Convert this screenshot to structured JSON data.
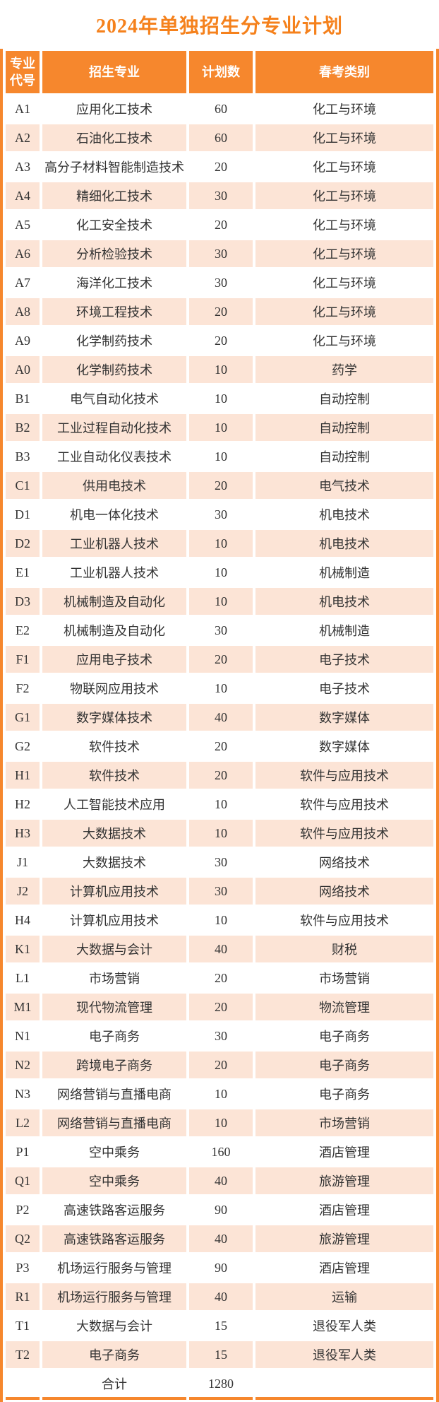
{
  "page": {
    "title": "2024年单独招生分专业计划"
  },
  "colors": {
    "accent_orange": "#F6872D",
    "title_orange": "#F5811C",
    "row_stripe_peach": "#FCE4D6",
    "header_text": "#FFFFFF",
    "body_text": "#333333"
  },
  "table": {
    "headers": [
      "专业代号",
      "招生专业",
      "计划数",
      "春考类别"
    ],
    "rows": [
      {
        "code": "A1",
        "major": "应用化工技术",
        "plan": "60",
        "category": "化工与环境"
      },
      {
        "code": "A2",
        "major": "石油化工技术",
        "plan": "60",
        "category": "化工与环境"
      },
      {
        "code": "A3",
        "major": "高分子材料智能制造技术",
        "plan": "20",
        "category": "化工与环境"
      },
      {
        "code": "A4",
        "major": "精细化工技术",
        "plan": "30",
        "category": "化工与环境"
      },
      {
        "code": "A5",
        "major": "化工安全技术",
        "plan": "20",
        "category": "化工与环境"
      },
      {
        "code": "A6",
        "major": "分析检验技术",
        "plan": "30",
        "category": "化工与环境"
      },
      {
        "code": "A7",
        "major": "海洋化工技术",
        "plan": "30",
        "category": "化工与环境"
      },
      {
        "code": "A8",
        "major": "环境工程技术",
        "plan": "20",
        "category": "化工与环境"
      },
      {
        "code": "A9",
        "major": "化学制药技术",
        "plan": "20",
        "category": "化工与环境"
      },
      {
        "code": "A0",
        "major": "化学制药技术",
        "plan": "10",
        "category": "药学"
      },
      {
        "code": "B1",
        "major": "电气自动化技术",
        "plan": "10",
        "category": "自动控制"
      },
      {
        "code": "B2",
        "major": "工业过程自动化技术",
        "plan": "10",
        "category": "自动控制"
      },
      {
        "code": "B3",
        "major": "工业自动化仪表技术",
        "plan": "10",
        "category": "自动控制"
      },
      {
        "code": "C1",
        "major": "供用电技术",
        "plan": "20",
        "category": "电气技术"
      },
      {
        "code": "D1",
        "major": "机电一体化技术",
        "plan": "30",
        "category": "机电技术"
      },
      {
        "code": "D2",
        "major": "工业机器人技术",
        "plan": "10",
        "category": "机电技术"
      },
      {
        "code": "E1",
        "major": "工业机器人技术",
        "plan": "10",
        "category": "机械制造"
      },
      {
        "code": "D3",
        "major": "机械制造及自动化",
        "plan": "10",
        "category": "机电技术"
      },
      {
        "code": "E2",
        "major": "机械制造及自动化",
        "plan": "30",
        "category": "机械制造"
      },
      {
        "code": "F1",
        "major": "应用电子技术",
        "plan": "20",
        "category": "电子技术"
      },
      {
        "code": "F2",
        "major": "物联网应用技术",
        "plan": "10",
        "category": "电子技术"
      },
      {
        "code": "G1",
        "major": "数字媒体技术",
        "plan": "40",
        "category": "数字媒体"
      },
      {
        "code": "G2",
        "major": "软件技术",
        "plan": "20",
        "category": "数字媒体"
      },
      {
        "code": "H1",
        "major": "软件技术",
        "plan": "20",
        "category": "软件与应用技术"
      },
      {
        "code": "H2",
        "major": "人工智能技术应用",
        "plan": "10",
        "category": "软件与应用技术"
      },
      {
        "code": "H3",
        "major": "大数据技术",
        "plan": "10",
        "category": "软件与应用技术"
      },
      {
        "code": "J1",
        "major": "大数据技术",
        "plan": "30",
        "category": "网络技术"
      },
      {
        "code": "J2",
        "major": "计算机应用技术",
        "plan": "30",
        "category": "网络技术"
      },
      {
        "code": "H4",
        "major": "计算机应用技术",
        "plan": "10",
        "category": "软件与应用技术"
      },
      {
        "code": "K1",
        "major": "大数据与会计",
        "plan": "40",
        "category": "财税"
      },
      {
        "code": "L1",
        "major": "市场营销",
        "plan": "20",
        "category": "市场营销"
      },
      {
        "code": "M1",
        "major": "现代物流管理",
        "plan": "20",
        "category": "物流管理"
      },
      {
        "code": "N1",
        "major": "电子商务",
        "plan": "30",
        "category": "电子商务"
      },
      {
        "code": "N2",
        "major": "跨境电子商务",
        "plan": "20",
        "category": "电子商务"
      },
      {
        "code": "N3",
        "major": "网络营销与直播电商",
        "plan": "10",
        "category": "电子商务"
      },
      {
        "code": "L2",
        "major": "网络营销与直播电商",
        "plan": "10",
        "category": "市场营销"
      },
      {
        "code": "P1",
        "major": "空中乘务",
        "plan": "160",
        "category": "酒店管理"
      },
      {
        "code": "Q1",
        "major": "空中乘务",
        "plan": "40",
        "category": "旅游管理"
      },
      {
        "code": "P2",
        "major": "高速铁路客运服务",
        "plan": "90",
        "category": "酒店管理"
      },
      {
        "code": "Q2",
        "major": "高速铁路客运服务",
        "plan": "40",
        "category": "旅游管理"
      },
      {
        "code": "P3",
        "major": "机场运行服务与管理",
        "plan": "90",
        "category": "酒店管理"
      },
      {
        "code": "R1",
        "major": "机场运行服务与管理",
        "plan": "40",
        "category": "运输"
      },
      {
        "code": "T1",
        "major": "大数据与会计",
        "plan": "15",
        "category": "退役军人类"
      },
      {
        "code": "T2",
        "major": "电子商务",
        "plan": "15",
        "category": "退役军人类"
      }
    ],
    "total_row": {
      "label": "合计",
      "plan": "1280"
    }
  }
}
